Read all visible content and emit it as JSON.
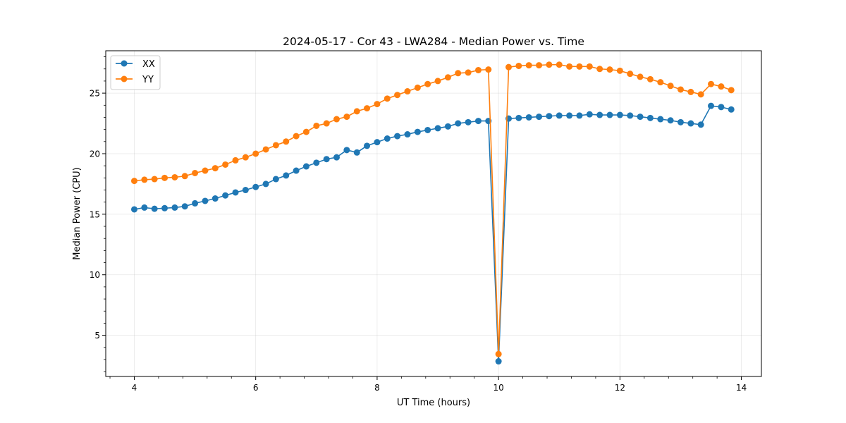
{
  "chart_data": {
    "type": "line",
    "title": "2024-05-17 - Cor 43 - LWA284 - Median Power vs. Time",
    "xlabel": "UT Time (hours)",
    "ylabel": "Median Power (CPU)",
    "xlim": [
      3.53,
      14.33
    ],
    "ylim": [
      1.6,
      28.5
    ],
    "xticks": [
      4,
      6,
      8,
      10,
      12,
      14
    ],
    "yticks": [
      5,
      10,
      15,
      20,
      25
    ],
    "grid": true,
    "legend_position": "top-left",
    "x": [
      4.0,
      4.167,
      4.333,
      4.5,
      4.667,
      4.833,
      5.0,
      5.167,
      5.333,
      5.5,
      5.667,
      5.833,
      6.0,
      6.167,
      6.333,
      6.5,
      6.667,
      6.833,
      7.0,
      7.167,
      7.333,
      7.5,
      7.667,
      7.833,
      8.0,
      8.167,
      8.333,
      8.5,
      8.667,
      8.833,
      9.0,
      9.167,
      9.333,
      9.5,
      9.667,
      9.833,
      10.0,
      10.167,
      10.333,
      10.5,
      10.667,
      10.833,
      11.0,
      11.167,
      11.333,
      11.5,
      11.667,
      11.833,
      12.0,
      12.167,
      12.333,
      12.5,
      12.667,
      12.833,
      13.0,
      13.167,
      13.333,
      13.5,
      13.667,
      13.833
    ],
    "series": [
      {
        "name": "XX",
        "color": "#1f77b4",
        "values": [
          15.4,
          15.55,
          15.45,
          15.5,
          15.55,
          15.65,
          15.9,
          16.1,
          16.3,
          16.55,
          16.8,
          17.0,
          17.25,
          17.5,
          17.9,
          18.2,
          18.6,
          18.95,
          19.25,
          19.55,
          19.7,
          20.3,
          20.1,
          20.65,
          20.95,
          21.25,
          21.45,
          21.6,
          21.8,
          21.95,
          22.1,
          22.25,
          22.5,
          22.6,
          22.7,
          22.7,
          2.85,
          22.9,
          22.95,
          23.0,
          23.05,
          23.1,
          23.15,
          23.15,
          23.15,
          23.25,
          23.2,
          23.2,
          23.2,
          23.15,
          23.05,
          22.95,
          22.85,
          22.75,
          22.6,
          22.5,
          22.4,
          23.95,
          23.85,
          23.65
        ]
      },
      {
        "name": "YY",
        "color": "#ff7f0e",
        "values": [
          17.75,
          17.85,
          17.9,
          18.0,
          18.05,
          18.15,
          18.4,
          18.6,
          18.8,
          19.1,
          19.45,
          19.7,
          20.0,
          20.35,
          20.7,
          21.0,
          21.45,
          21.8,
          22.3,
          22.5,
          22.85,
          23.05,
          23.5,
          23.75,
          24.1,
          24.55,
          24.85,
          25.15,
          25.45,
          25.75,
          26.0,
          26.3,
          26.65,
          26.7,
          26.9,
          26.95,
          3.45,
          27.15,
          27.25,
          27.3,
          27.3,
          27.35,
          27.35,
          27.2,
          27.2,
          27.2,
          27.0,
          26.95,
          26.85,
          26.6,
          26.35,
          26.15,
          25.9,
          25.6,
          25.3,
          25.1,
          24.9,
          25.75,
          25.55,
          25.25
        ]
      }
    ]
  }
}
